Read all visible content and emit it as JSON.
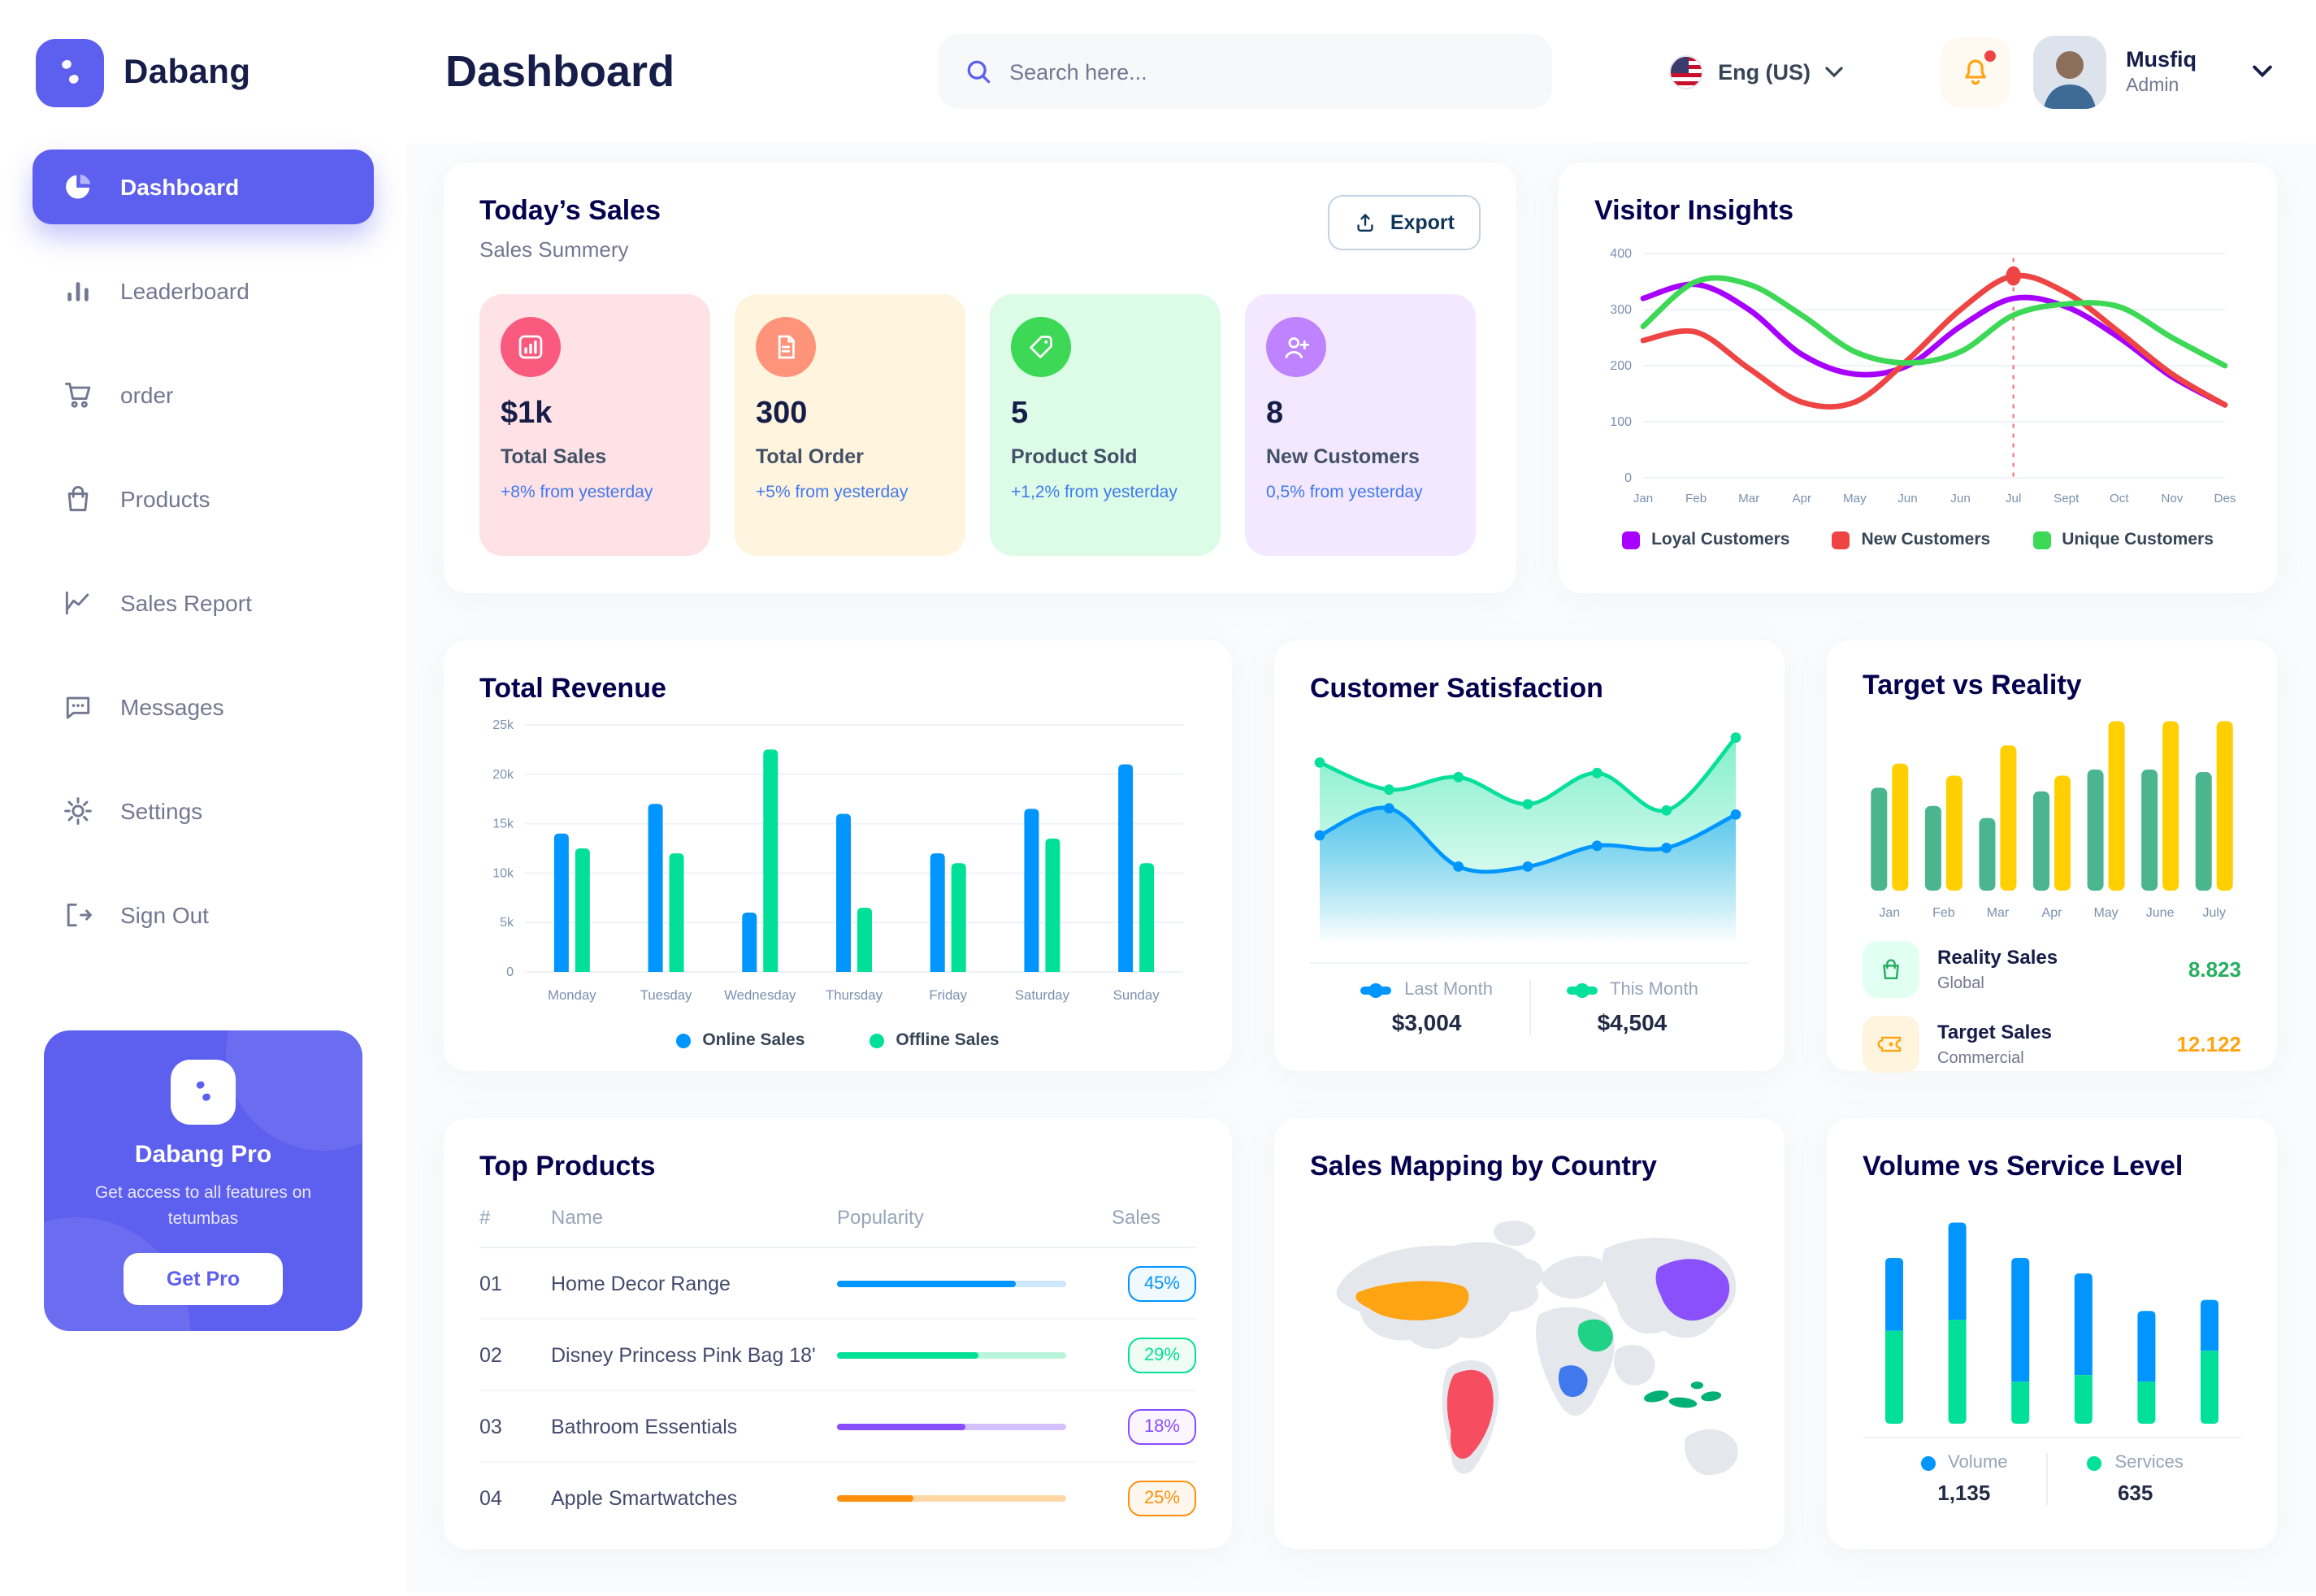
{
  "app": {
    "brand": "Dabang"
  },
  "header": {
    "page_title": "Dashboard",
    "search_placeholder": "Search here...",
    "language": "Eng (US)",
    "user_name": "Musfiq",
    "user_role": "Admin"
  },
  "sidebar": {
    "items": [
      {
        "label": "Dashboard",
        "active": true
      },
      {
        "label": "Leaderboard"
      },
      {
        "label": "order"
      },
      {
        "label": "Products"
      },
      {
        "label": "Sales Report"
      },
      {
        "label": "Messages"
      },
      {
        "label": "Settings"
      },
      {
        "label": "Sign Out"
      }
    ],
    "pro": {
      "title": "Dabang Pro",
      "desc": "Get access to all features on tetumbas",
      "button": "Get Pro"
    }
  },
  "today_sales": {
    "title": "Today’s Sales",
    "subtitle": "Sales Summery",
    "export_label": "Export",
    "cards": [
      {
        "value": "$1k",
        "label": "Total Sales",
        "delta": "+8% from yesterday",
        "bg": "#FFE2E5",
        "icon_bg": "#FA5A7D"
      },
      {
        "value": "300",
        "label": "Total Order",
        "delta": "+5% from yesterday",
        "bg": "#FFF4DE",
        "icon_bg": "#FF947A"
      },
      {
        "value": "5",
        "label": "Product Sold",
        "delta": "+1,2% from yesterday",
        "bg": "#DCFCE7",
        "icon_bg": "#3CD856"
      },
      {
        "value": "8",
        "label": "New Customers",
        "delta": "0,5% from yesterday",
        "bg": "#F3E8FF",
        "icon_bg": "#BF83FF"
      }
    ]
  },
  "visitor_insights": {
    "title": "Visitor Insights",
    "chart_data": {
      "type": "line",
      "x_labels": [
        "Jan",
        "Feb",
        "Mar",
        "Apr",
        "May",
        "Jun",
        "Jun",
        "Jul",
        "Sept",
        "Oct",
        "Nov",
        "Des"
      ],
      "ylim": [
        0,
        400
      ],
      "yticks": [
        0,
        100,
        200,
        300,
        400
      ],
      "grid": true,
      "legend_position": "bottom",
      "series": [
        {
          "name": "Loyal Customers",
          "color": "#A700FF",
          "values": [
            320,
            345,
            300,
            220,
            185,
            200,
            270,
            320,
            305,
            250,
            180,
            130
          ]
        },
        {
          "name": "New Customers",
          "color": "#EF4444",
          "values": [
            245,
            260,
            195,
            135,
            135,
            210,
            300,
            360,
            330,
            260,
            185,
            130
          ]
        },
        {
          "name": "Unique Customers",
          "color": "#3CD856",
          "values": [
            270,
            350,
            345,
            290,
            225,
            205,
            225,
            290,
            310,
            305,
            250,
            200
          ]
        }
      ],
      "highlight": {
        "series": "New Customers",
        "index": 7,
        "value": 360,
        "color": "#EF4444"
      }
    }
  },
  "total_revenue": {
    "title": "Total Revenue",
    "chart_data": {
      "type": "bar",
      "categories": [
        "Monday",
        "Tuesday",
        "Wednesday",
        "Thursday",
        "Friday",
        "Saturday",
        "Sunday"
      ],
      "ylim": [
        0,
        25
      ],
      "ytick_labels": [
        "0",
        "5k",
        "10k",
        "15k",
        "20k",
        "25k"
      ],
      "grid": true,
      "legend_position": "bottom",
      "series": [
        {
          "name": "Online Sales",
          "color": "#0095FF",
          "values": [
            14,
            17,
            6,
            16,
            12,
            16.5,
            21
          ]
        },
        {
          "name": "Offline Sales",
          "color": "#00E096",
          "values": [
            12.5,
            12,
            22.5,
            6.5,
            11,
            13.5,
            11
          ]
        }
      ]
    }
  },
  "customer_satisfaction": {
    "title": "Customer Satisfaction",
    "chart_data": {
      "type": "area",
      "ylim": [
        0,
        100
      ],
      "grid": false,
      "legend_position": "bottom",
      "series": [
        {
          "name": "Last Month",
          "color": "#0095FF",
          "total": "$3,004",
          "values": [
            50,
            63,
            35,
            35,
            45,
            44,
            60
          ]
        },
        {
          "name": "This Month",
          "color": "#07E098",
          "total": "$4,504",
          "values": [
            85,
            72,
            78,
            65,
            80,
            62,
            97
          ]
        }
      ]
    }
  },
  "target_vs_reality": {
    "title": "Target vs Reality",
    "chart_data": {
      "type": "bar",
      "categories": [
        "Jan",
        "Feb",
        "Mar",
        "Apr",
        "May",
        "June",
        "July"
      ],
      "ylim": [
        0,
        14.5
      ],
      "grid": false,
      "series": [
        {
          "name": "Reality Sales",
          "color": "#4AB58E",
          "values": [
            8.5,
            7,
            6,
            8.2,
            10,
            10,
            9.8
          ]
        },
        {
          "name": "Target Sales",
          "color": "#FFCF00",
          "values": [
            10.5,
            9.5,
            12,
            9.5,
            14,
            14,
            14
          ]
        }
      ]
    },
    "rows": [
      {
        "title": "Reality Sales",
        "sub": "Global",
        "value": "8.823",
        "value_color": "#27AE60",
        "icon_bg": "#E2FFF3"
      },
      {
        "title": "Target Sales",
        "sub": "Commercial",
        "value": "12.122",
        "value_color": "#FFA412",
        "icon_bg": "#FFF4DE"
      }
    ]
  },
  "top_products": {
    "title": "Top Products",
    "headers": [
      "#",
      "Name",
      "Popularity",
      "Sales"
    ],
    "rows": [
      {
        "num": "01",
        "name": "Home Decor Range",
        "sales": "45%",
        "fill_pct": 78,
        "color": "#0095FF",
        "track": "#CDE7FF",
        "badge_bg": "#F0F9FF"
      },
      {
        "num": "02",
        "name": "Disney Princess Pink Bag 18'",
        "sales": "29%",
        "fill_pct": 62,
        "color": "#00E096",
        "track": "#B9F5DC",
        "badge_bg": "#F0FDF4"
      },
      {
        "num": "03",
        "name": "Bathroom Essentials",
        "sales": "18%",
        "fill_pct": 56,
        "color": "#884DFF",
        "track": "#D5C0FF",
        "badge_bg": "#FAF5FF"
      },
      {
        "num": "04",
        "name": "Apple Smartwatches",
        "sales": "25%",
        "fill_pct": 33,
        "color": "#FF8F0D",
        "track": "#FFD8A6",
        "badge_bg": "#FFF7ED"
      }
    ]
  },
  "sales_mapping": {
    "title": "Sales Mapping by Country",
    "countries": [
      {
        "name": "United States",
        "color": "#FFA412"
      },
      {
        "name": "Brazil",
        "color": "#F64E60"
      },
      {
        "name": "Saudi Arabia",
        "color": "#1FD286"
      },
      {
        "name": "DR Congo",
        "color": "#4079ED"
      },
      {
        "name": "China",
        "color": "#8950FC"
      },
      {
        "name": "Indonesia",
        "color": "#00B074"
      }
    ]
  },
  "volume_service": {
    "title": "Volume vs Service Level",
    "chart_data": {
      "type": "stacked-bar",
      "ylim": [
        0,
        100
      ],
      "legend_position": "bottom",
      "series": [
        {
          "name": "Volume",
          "color": "#0095FF",
          "total": "1,135",
          "values": [
            33,
            44,
            56,
            46,
            32,
            23
          ]
        },
        {
          "name": "Services",
          "color": "#00E096",
          "total": "635",
          "values": [
            42,
            47,
            19,
            22,
            19,
            33
          ]
        }
      ]
    }
  }
}
